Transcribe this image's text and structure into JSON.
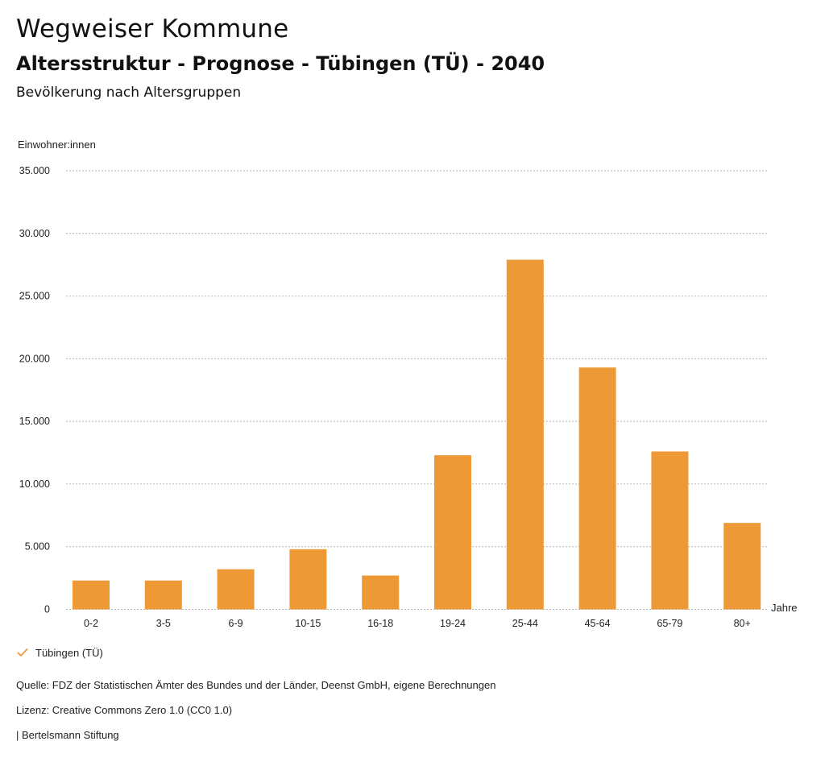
{
  "header": {
    "title": "Wegweiser Kommune",
    "subtitle": "Altersstruktur - Prognose - Tübingen (TÜ) - 2040",
    "subsubtitle": "Bevölkerung nach Altersgruppen"
  },
  "chart_data": {
    "type": "bar",
    "title": "Bevölkerung nach Altersgruppen",
    "xlabel": "Jahre",
    "ylabel": "Einwohner:innen",
    "categories": [
      "0-2",
      "3-5",
      "6-9",
      "10-15",
      "16-18",
      "19-24",
      "25-44",
      "45-64",
      "65-79",
      "80+"
    ],
    "series": [
      {
        "name": "Tübingen (TÜ)",
        "color": "#ed9a36",
        "values": [
          2300,
          2300,
          3200,
          4800,
          2700,
          12300,
          27900,
          19300,
          12600,
          6900
        ]
      }
    ],
    "ylim": [
      0,
      35000
    ],
    "yticks": [
      0,
      5000,
      10000,
      15000,
      20000,
      25000,
      30000,
      35000
    ],
    "ytick_labels": [
      "0",
      "5.000",
      "10.000",
      "15.000",
      "20.000",
      "25.000",
      "30.000",
      "35.000"
    ],
    "grid": true,
    "legend": "bottom-left"
  },
  "legend": {
    "items": [
      {
        "label": "Tübingen (TÜ)",
        "icon": "check-icon",
        "color": "#ed9a36"
      }
    ]
  },
  "footer": {
    "source": "Quelle: FDZ der Statistischen Ämter des Bundes und der Länder, Deenst GmbH, eigene Berechnungen",
    "license": "Lizenz: Creative Commons Zero 1.0 (CC0 1.0)",
    "publisher": "| Bertelsmann Stiftung"
  }
}
